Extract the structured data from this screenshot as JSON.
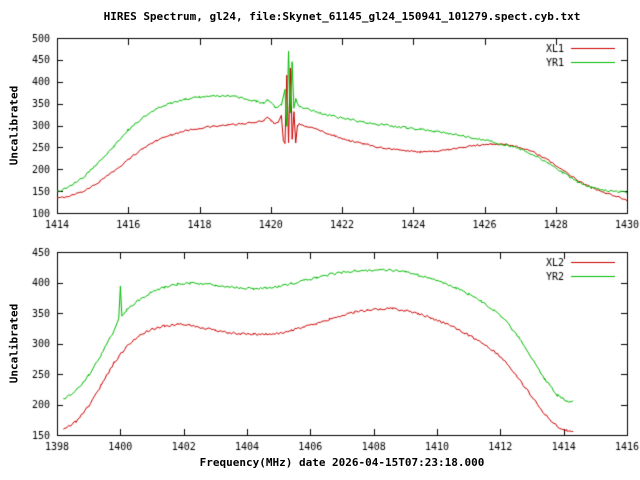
{
  "title": "HIRES Spectrum, gl24, file:Skynet_61145_gl24_150941_101279.spect.cyb.txt",
  "xlabel": "Frequency(MHz) date 2026-04-15T07:23:18.000",
  "colors": {
    "red_series": "#cc0000",
    "green_series": "#00bb00",
    "axis": "#000000",
    "background": "#ffffff"
  },
  "chart_data": [
    {
      "type": "line",
      "title": "",
      "ylabel": "Uncalibrated",
      "xlim": [
        1414,
        1430
      ],
      "ylim": [
        100,
        500
      ],
      "xticks": [
        1414,
        1416,
        1418,
        1420,
        1422,
        1424,
        1426,
        1428,
        1430
      ],
      "yticks": [
        100,
        150,
        200,
        250,
        300,
        350,
        400,
        450,
        500
      ],
      "grid": false,
      "legend_position": "top-right-inside",
      "series": [
        {
          "name": "XL1",
          "color": "#cc0000",
          "noise": 4,
          "points": [
            [
              1414.0,
              133
            ],
            [
              1414.4,
              140
            ],
            [
              1414.8,
              152
            ],
            [
              1415.2,
              172
            ],
            [
              1415.6,
              196
            ],
            [
              1416.0,
              222
            ],
            [
              1416.4,
              247
            ],
            [
              1416.8,
              266
            ],
            [
              1417.2,
              279
            ],
            [
              1417.6,
              288
            ],
            [
              1418.0,
              294
            ],
            [
              1418.4,
              298
            ],
            [
              1418.8,
              301
            ],
            [
              1419.2,
              304
            ],
            [
              1419.6,
              307
            ],
            [
              1419.8,
              312
            ],
            [
              1419.9,
              318
            ],
            [
              1420.0,
              312
            ],
            [
              1420.1,
              305
            ],
            [
              1420.2,
              308
            ],
            [
              1420.3,
              322
            ],
            [
              1420.35,
              268
            ],
            [
              1420.4,
              258
            ],
            [
              1420.45,
              415
            ],
            [
              1420.5,
              262
            ],
            [
              1420.55,
              430
            ],
            [
              1420.6,
              270
            ],
            [
              1420.65,
              330
            ],
            [
              1420.7,
              258
            ],
            [
              1420.75,
              300
            ],
            [
              1420.8,
              305
            ],
            [
              1421.0,
              298
            ],
            [
              1421.4,
              288
            ],
            [
              1421.8,
              276
            ],
            [
              1422.2,
              266
            ],
            [
              1422.6,
              258
            ],
            [
              1423.0,
              251
            ],
            [
              1423.4,
              246
            ],
            [
              1423.8,
              242
            ],
            [
              1424.2,
              240
            ],
            [
              1424.6,
              241
            ],
            [
              1425.0,
              245
            ],
            [
              1425.4,
              250
            ],
            [
              1425.8,
              255
            ],
            [
              1426.2,
              258
            ],
            [
              1426.6,
              257
            ],
            [
              1427.0,
              250
            ],
            [
              1427.4,
              238
            ],
            [
              1427.8,
              220
            ],
            [
              1428.2,
              198
            ],
            [
              1428.6,
              176
            ],
            [
              1429.0,
              158
            ],
            [
              1429.4,
              145
            ],
            [
              1429.8,
              135
            ],
            [
              1430.0,
              130
            ]
          ]
        },
        {
          "name": "YR1",
          "color": "#00bb00",
          "noise": 5,
          "points": [
            [
              1414.0,
              148
            ],
            [
              1414.4,
              162
            ],
            [
              1414.8,
              186
            ],
            [
              1415.2,
              218
            ],
            [
              1415.6,
              254
            ],
            [
              1416.0,
              290
            ],
            [
              1416.4,
              318
            ],
            [
              1416.8,
              338
            ],
            [
              1417.2,
              352
            ],
            [
              1417.6,
              360
            ],
            [
              1418.0,
              366
            ],
            [
              1418.4,
              369
            ],
            [
              1418.8,
              368
            ],
            [
              1419.2,
              363
            ],
            [
              1419.6,
              355
            ],
            [
              1419.8,
              350
            ],
            [
              1419.9,
              358
            ],
            [
              1420.0,
              352
            ],
            [
              1420.1,
              344
            ],
            [
              1420.2,
              342
            ],
            [
              1420.3,
              348
            ],
            [
              1420.4,
              380
            ],
            [
              1420.45,
              300
            ],
            [
              1420.5,
              468
            ],
            [
              1420.55,
              330
            ],
            [
              1420.6,
              445
            ],
            [
              1420.65,
              340
            ],
            [
              1420.7,
              360
            ],
            [
              1420.8,
              345
            ],
            [
              1421.0,
              338
            ],
            [
              1421.4,
              328
            ],
            [
              1421.8,
              320
            ],
            [
              1422.2,
              314
            ],
            [
              1422.6,
              308
            ],
            [
              1423.0,
              303
            ],
            [
              1423.4,
              299
            ],
            [
              1423.8,
              295
            ],
            [
              1424.2,
              291
            ],
            [
              1424.6,
              287
            ],
            [
              1425.0,
              282
            ],
            [
              1425.4,
              276
            ],
            [
              1425.8,
              270
            ],
            [
              1426.2,
              263
            ],
            [
              1426.6,
              256
            ],
            [
              1427.0,
              246
            ],
            [
              1427.4,
              232
            ],
            [
              1427.8,
              213
            ],
            [
              1428.2,
              192
            ],
            [
              1428.6,
              172
            ],
            [
              1429.0,
              158
            ],
            [
              1429.4,
              151
            ],
            [
              1429.8,
              148
            ],
            [
              1430.0,
              147
            ]
          ]
        }
      ]
    },
    {
      "type": "line",
      "title": "",
      "ylabel": "Uncalibrated",
      "xlim": [
        1398,
        1416
      ],
      "ylim": [
        150,
        450
      ],
      "xticks": [
        1398,
        1400,
        1402,
        1404,
        1406,
        1408,
        1410,
        1412,
        1414,
        1416
      ],
      "yticks": [
        150,
        200,
        250,
        300,
        350,
        400,
        450
      ],
      "grid": false,
      "legend_position": "top-right-inside",
      "series": [
        {
          "name": "XL2",
          "color": "#cc0000",
          "noise": 4,
          "points": [
            [
              1398.2,
              158
            ],
            [
              1398.6,
              172
            ],
            [
              1399.0,
              198
            ],
            [
              1399.4,
              232
            ],
            [
              1399.8,
              268
            ],
            [
              1400.2,
              295
            ],
            [
              1400.6,
              313
            ],
            [
              1401.0,
              324
            ],
            [
              1401.4,
              329
            ],
            [
              1401.8,
              331
            ],
            [
              1402.2,
              330
            ],
            [
              1402.6,
              326
            ],
            [
              1403.0,
              321
            ],
            [
              1403.4,
              318
            ],
            [
              1403.8,
              316
            ],
            [
              1404.2,
              315
            ],
            [
              1404.6,
              315
            ],
            [
              1405.0,
              317
            ],
            [
              1405.4,
              321
            ],
            [
              1405.8,
              327
            ],
            [
              1406.2,
              333
            ],
            [
              1406.6,
              340
            ],
            [
              1407.0,
              346
            ],
            [
              1407.4,
              351
            ],
            [
              1407.8,
              355
            ],
            [
              1408.2,
              357
            ],
            [
              1408.6,
              357
            ],
            [
              1409.0,
              354
            ],
            [
              1409.4,
              349
            ],
            [
              1409.8,
              342
            ],
            [
              1410.2,
              334
            ],
            [
              1410.6,
              325
            ],
            [
              1411.0,
              314
            ],
            [
              1411.4,
              302
            ],
            [
              1411.8,
              288
            ],
            [
              1412.2,
              268
            ],
            [
              1412.6,
              242
            ],
            [
              1413.0,
              212
            ],
            [
              1413.4,
              184
            ],
            [
              1413.8,
              164
            ],
            [
              1414.1,
              157
            ],
            [
              1414.3,
              156
            ]
          ]
        },
        {
          "name": "YR2",
          "color": "#00bb00",
          "noise": 4,
          "points": [
            [
              1398.2,
              208
            ],
            [
              1398.6,
              222
            ],
            [
              1399.0,
              248
            ],
            [
              1399.4,
              282
            ],
            [
              1399.8,
              320
            ],
            [
              1399.95,
              340
            ],
            [
              1400.0,
              392
            ],
            [
              1400.05,
              345
            ],
            [
              1400.2,
              355
            ],
            [
              1400.6,
              372
            ],
            [
              1401.0,
              385
            ],
            [
              1401.4,
              392
            ],
            [
              1401.8,
              397
            ],
            [
              1402.2,
              399
            ],
            [
              1402.6,
              398
            ],
            [
              1403.0,
              396
            ],
            [
              1403.4,
              393
            ],
            [
              1403.8,
              391
            ],
            [
              1404.2,
              390
            ],
            [
              1404.6,
              391
            ],
            [
              1405.0,
              394
            ],
            [
              1405.4,
              398
            ],
            [
              1405.8,
              403
            ],
            [
              1406.2,
              408
            ],
            [
              1406.6,
              413
            ],
            [
              1407.0,
              416
            ],
            [
              1407.4,
              419
            ],
            [
              1407.8,
              420
            ],
            [
              1408.2,
              421
            ],
            [
              1408.6,
              420
            ],
            [
              1409.0,
              417
            ],
            [
              1409.4,
              412
            ],
            [
              1409.8,
              406
            ],
            [
              1410.2,
              399
            ],
            [
              1410.6,
              391
            ],
            [
              1411.0,
              381
            ],
            [
              1411.4,
              369
            ],
            [
              1411.8,
              354
            ],
            [
              1412.2,
              335
            ],
            [
              1412.6,
              309
            ],
            [
              1413.0,
              276
            ],
            [
              1413.4,
              242
            ],
            [
              1413.8,
              215
            ],
            [
              1414.1,
              206
            ],
            [
              1414.3,
              205
            ]
          ]
        }
      ]
    }
  ]
}
